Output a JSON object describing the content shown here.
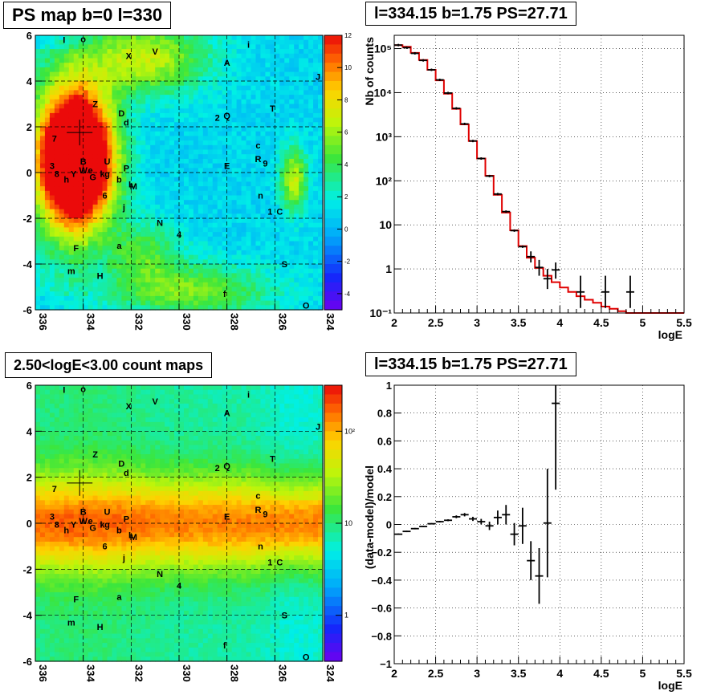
{
  "chart_data": [
    {
      "type": "heatmap",
      "title": "PS map b=0 l=330",
      "xlim": [
        336,
        324
      ],
      "ylim": [
        -6,
        6
      ],
      "x_ticks": [
        "336",
        "334",
        "332",
        "330",
        "328",
        "326",
        "324"
      ],
      "y_ticks": [
        "6",
        "4",
        "2",
        "0",
        "-2",
        "-4",
        "-6"
      ],
      "colorbar": {
        "min": -5,
        "max": 12,
        "ticks": [
          "12",
          "10",
          "8",
          "6",
          "4",
          "2",
          "0",
          "-2",
          "-4"
        ]
      },
      "grid": true,
      "marker": {
        "l": 334.15,
        "b": 1.75
      },
      "labels": [
        {
          "t": "I",
          "l": 334.8,
          "b": 5.8
        },
        {
          "t": "o",
          "l": 334.0,
          "b": 5.85
        },
        {
          "t": "X",
          "l": 332.1,
          "b": 5.1
        },
        {
          "t": "V",
          "l": 331.0,
          "b": 5.3
        },
        {
          "t": "A",
          "l": 328.0,
          "b": 4.8
        },
        {
          "t": "i",
          "l": 327.1,
          "b": 5.6
        },
        {
          "t": "J",
          "l": 324.2,
          "b": 4.2
        },
        {
          "t": "Z",
          "l": 333.5,
          "b": 3.0
        },
        {
          "t": "D",
          "l": 332.4,
          "b": 2.6
        },
        {
          "t": "d",
          "l": 332.2,
          "b": 2.2
        },
        {
          "t": "2",
          "l": 328.4,
          "b": 2.4
        },
        {
          "t": "Q",
          "l": 328.0,
          "b": 2.5
        },
        {
          "t": "T",
          "l": 326.1,
          "b": 2.8
        },
        {
          "t": "7",
          "l": 335.2,
          "b": 1.5
        },
        {
          "t": "c",
          "l": 326.7,
          "b": 1.2
        },
        {
          "t": "R",
          "l": 326.7,
          "b": 0.6
        },
        {
          "t": "9",
          "l": 326.4,
          "b": 0.4
        },
        {
          "t": "E",
          "l": 328.0,
          "b": 0.3
        },
        {
          "t": "3",
          "l": 335.3,
          "b": 0.3
        },
        {
          "t": "8",
          "l": 335.1,
          "b": -0.05
        },
        {
          "t": "h",
          "l": 334.7,
          "b": -0.3
        },
        {
          "t": "Y",
          "l": 334.4,
          "b": -0.05
        },
        {
          "t": "B",
          "l": 334.0,
          "b": 0.5
        },
        {
          "t": "W",
          "l": 334.0,
          "b": 0.1
        },
        {
          "t": "e",
          "l": 333.7,
          "b": 0.1
        },
        {
          "t": "U",
          "l": 333.0,
          "b": 0.5
        },
        {
          "t": "k",
          "l": 333.2,
          "b": -0.05
        },
        {
          "t": "g",
          "l": 333.0,
          "b": -0.05
        },
        {
          "t": "G",
          "l": 333.6,
          "b": -0.2
        },
        {
          "t": "P",
          "l": 332.2,
          "b": 0.2
        },
        {
          "t": "b",
          "l": 332.5,
          "b": -0.3
        },
        {
          "t": "L",
          "l": 332.0,
          "b": -0.5
        },
        {
          "t": "M",
          "l": 331.9,
          "b": -0.6
        },
        {
          "t": "6",
          "l": 333.1,
          "b": -1.0
        },
        {
          "t": "n",
          "l": 326.6,
          "b": -1.0
        },
        {
          "t": "j",
          "l": 332.3,
          "b": -1.5
        },
        {
          "t": "1",
          "l": 326.2,
          "b": -1.7
        },
        {
          "t": "C",
          "l": 325.8,
          "b": -1.7
        },
        {
          "t": "N",
          "l": 330.8,
          "b": -2.2
        },
        {
          "t": "4",
          "l": 330.0,
          "b": -2.7
        },
        {
          "t": "F",
          "l": 334.3,
          "b": -3.3
        },
        {
          "t": "a",
          "l": 332.5,
          "b": -3.2
        },
        {
          "t": "S",
          "l": 325.6,
          "b": -4.0
        },
        {
          "t": "m",
          "l": 334.5,
          "b": -4.3
        },
        {
          "t": "H",
          "l": 333.3,
          "b": -4.5
        },
        {
          "t": "f",
          "l": 328.1,
          "b": -5.3
        },
        {
          "t": "O",
          "l": 324.7,
          "b": -5.8
        }
      ]
    },
    {
      "type": "line",
      "title": "l=334.15 b=1.75 PS=27.71",
      "xlabel": "logE",
      "ylabel": "Nb of counts",
      "ylog": true,
      "xlim": [
        2,
        5.5
      ],
      "ylim": [
        0.1,
        200000
      ],
      "x_ticks": [
        "2",
        "2.5",
        "3",
        "3.5",
        "4",
        "4.5",
        "5",
        "5.5"
      ],
      "y_ticks": [
        {
          "v": 100000,
          "t": "10⁵"
        },
        {
          "v": 10000,
          "t": "10⁴"
        },
        {
          "v": 1000,
          "t": "10³"
        },
        {
          "v": 100,
          "t": "10²"
        },
        {
          "v": 10,
          "t": "10"
        },
        {
          "v": 1,
          "t": "1"
        },
        {
          "v": 0.1,
          "t": "10⁻¹"
        }
      ],
      "grid": true,
      "model": {
        "color": "#e00000",
        "bin_width": 0.1,
        "x": [
          2.05,
          2.15,
          2.25,
          2.35,
          2.45,
          2.55,
          2.65,
          2.75,
          2.85,
          2.95,
          3.05,
          3.15,
          3.25,
          3.35,
          3.45,
          3.55,
          3.65,
          3.75,
          3.85,
          3.95,
          4.05,
          4.15,
          4.25,
          4.35,
          4.45,
          4.55,
          4.65,
          4.75,
          4.85,
          4.95,
          5.05,
          5.15,
          5.25,
          5.35,
          5.45
        ],
        "y": [
          120000,
          110000,
          80000,
          55000,
          33000,
          19000,
          9500,
          4300,
          1900,
          800,
          320,
          130,
          48,
          19,
          7.5,
          3.3,
          1.8,
          1.05,
          0.7,
          0.5,
          0.38,
          0.3,
          0.24,
          0.2,
          0.17,
          0.14,
          0.125,
          0.11,
          0.1,
          0.1,
          0.1,
          0.1,
          0.1,
          0.1,
          0.1
        ]
      },
      "data": {
        "color": "#000000",
        "points": [
          {
            "x": 2.05,
            "y": 120000
          },
          {
            "x": 2.15,
            "y": 105000
          },
          {
            "x": 2.25,
            "y": 78000
          },
          {
            "x": 2.35,
            "y": 54000
          },
          {
            "x": 2.45,
            "y": 33000
          },
          {
            "x": 2.55,
            "y": 19500
          },
          {
            "x": 2.65,
            "y": 9800
          },
          {
            "x": 2.75,
            "y": 4400
          },
          {
            "x": 2.85,
            "y": 1950
          },
          {
            "x": 2.95,
            "y": 800
          },
          {
            "x": 3.05,
            "y": 320
          },
          {
            "x": 3.15,
            "y": 128
          },
          {
            "x": 3.25,
            "y": 50
          },
          {
            "x": 3.35,
            "y": 20
          },
          {
            "x": 3.45,
            "y": 7.4
          },
          {
            "x": 3.55,
            "y": 3.2
          },
          {
            "x": 3.65,
            "y": 1.9,
            "lo": 1.4,
            "hi": 2.5
          },
          {
            "x": 3.75,
            "y": 1.08,
            "lo": 0.7,
            "hi": 1.6
          },
          {
            "x": 3.85,
            "y": 0.6,
            "lo": 0.35,
            "hi": 1.0
          },
          {
            "x": 3.95,
            "y": 0.95,
            "lo": 0.6,
            "hi": 1.4
          },
          {
            "x": 4.25,
            "y": 0.3,
            "lo": 0.13,
            "hi": 0.7
          },
          {
            "x": 4.55,
            "y": 0.3,
            "lo": 0.13,
            "hi": 0.7
          },
          {
            "x": 4.85,
            "y": 0.3,
            "lo": 0.13,
            "hi": 0.7
          }
        ]
      }
    },
    {
      "type": "heatmap",
      "title": "2.50<logE<3.00 count maps",
      "xlim": [
        336,
        324
      ],
      "ylim": [
        -6,
        6
      ],
      "x_ticks": [
        "336",
        "334",
        "332",
        "330",
        "328",
        "326",
        "324"
      ],
      "y_ticks": [
        "6",
        "4",
        "2",
        "0",
        "-2",
        "-4",
        "-6"
      ],
      "colorbar": {
        "log": true,
        "ticks": [
          {
            "v": 100,
            "t": "10²"
          },
          {
            "v": 10,
            "t": "10"
          },
          {
            "v": 1,
            "t": "1"
          }
        ]
      },
      "grid": true,
      "marker": {
        "l": 334.15,
        "b": 1.75
      }
    },
    {
      "type": "scatter",
      "title": "l=334.15 b=1.75 PS=27.71",
      "xlabel": "logE",
      "ylabel": "(data-model)/model",
      "xlim": [
        2,
        5.5
      ],
      "ylim": [
        -1,
        1
      ],
      "x_ticks": [
        "2",
        "2.5",
        "3",
        "3.5",
        "4",
        "4.5",
        "5",
        "5.5"
      ],
      "y_ticks": [
        "1",
        "0.8",
        "0.6",
        "0.4",
        "0.2",
        "0",
        "−0.2",
        "−0.4",
        "−0.6",
        "−0.8",
        "−1"
      ],
      "grid": true,
      "points": [
        {
          "x": 2.05,
          "y": -0.07,
          "e": 0.005
        },
        {
          "x": 2.15,
          "y": -0.05,
          "e": 0.005
        },
        {
          "x": 2.25,
          "y": -0.03,
          "e": 0.005
        },
        {
          "x": 2.35,
          "y": -0.015,
          "e": 0.005
        },
        {
          "x": 2.45,
          "y": 0.005,
          "e": 0.005
        },
        {
          "x": 2.55,
          "y": 0.02,
          "e": 0.006
        },
        {
          "x": 2.65,
          "y": 0.03,
          "e": 0.007
        },
        {
          "x": 2.75,
          "y": 0.055,
          "e": 0.01
        },
        {
          "x": 2.85,
          "y": 0.07,
          "e": 0.012
        },
        {
          "x": 2.95,
          "y": 0.04,
          "e": 0.015
        },
        {
          "x": 3.05,
          "y": 0.02,
          "e": 0.02
        },
        {
          "x": 3.15,
          "y": -0.01,
          "e": 0.03
        },
        {
          "x": 3.25,
          "y": 0.05,
          "e": 0.05
        },
        {
          "x": 3.35,
          "y": 0.07,
          "e": 0.07
        },
        {
          "x": 3.45,
          "y": -0.07,
          "e": 0.08
        },
        {
          "x": 3.55,
          "y": -0.01,
          "e": 0.13
        },
        {
          "x": 3.65,
          "y": -0.26,
          "e": 0.14
        },
        {
          "x": 3.75,
          "y": -0.37,
          "e": 0.2
        },
        {
          "x": 3.85,
          "y": 0.01,
          "e": 0.39
        },
        {
          "x": 3.95,
          "y": 0.87,
          "e": 0.62
        }
      ]
    }
  ]
}
